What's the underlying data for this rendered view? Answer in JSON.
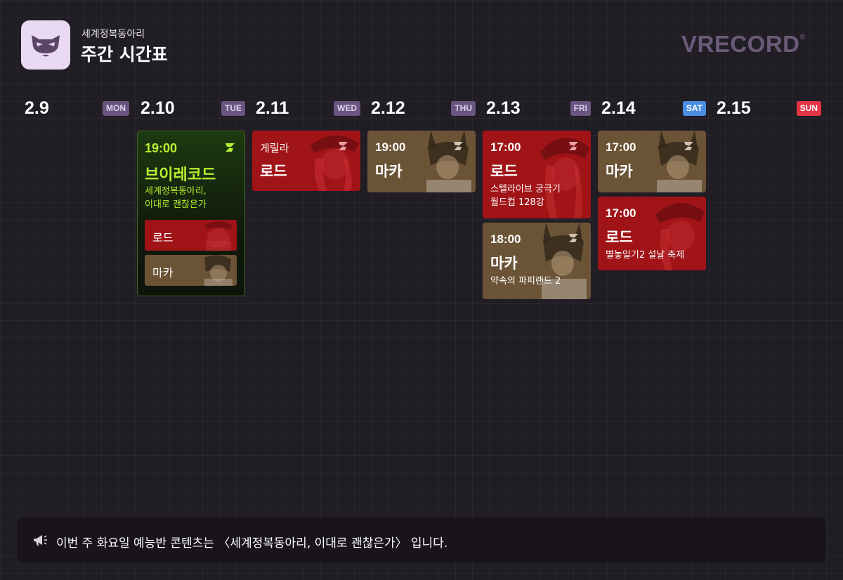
{
  "header": {
    "subtitle": "세계정복동아리",
    "title": "주간 시간표",
    "brand": "VRECORD",
    "brand_mark": "®"
  },
  "days": [
    {
      "date": "2.9",
      "weekday": "MON"
    },
    {
      "date": "2.10",
      "weekday": "TUE"
    },
    {
      "date": "2.11",
      "weekday": "WED"
    },
    {
      "date": "2.12",
      "weekday": "THU"
    },
    {
      "date": "2.13",
      "weekday": "FRI"
    },
    {
      "date": "2.14",
      "weekday": "SAT"
    },
    {
      "date": "2.15",
      "weekday": "SUN"
    }
  ],
  "schedule": {
    "tue": {
      "time": "19:00",
      "name": "브이레코드",
      "desc_line1": "세계정복동아리,",
      "desc_line2": "이대로 괜찮은가",
      "members": [
        "로드",
        "마카"
      ]
    },
    "wed": {
      "pre": "게릴라",
      "name": "로드"
    },
    "thu": {
      "time": "19:00",
      "name": "마카"
    },
    "fri": [
      {
        "time": "17:00",
        "name": "로드",
        "desc_line1": "스텔라이브 궁극기",
        "desc_line2": "월드컵 128강"
      },
      {
        "time": "18:00",
        "name": "마카",
        "desc_line1": "약속의 파피랜드 2"
      }
    ],
    "sat": [
      {
        "time": "17:00",
        "name": "마카"
      },
      {
        "time": "17:00",
        "name": "로드",
        "desc_line1": "별놓일기2 설날 축제"
      }
    ]
  },
  "notice": {
    "icon": "megaphone-icon",
    "text": "이번 주 화요일 예능반 콘텐츠는 〈세계정복동아리, 이대로 괜찮은가〉 입니다."
  },
  "colors": {
    "background": "#211d24",
    "rod_red": "#a01418",
    "maka_brown": "#6b5336",
    "feature_green": "#b7f230",
    "sat_blue": "#4a8ee4",
    "sun_red": "#e23444"
  }
}
